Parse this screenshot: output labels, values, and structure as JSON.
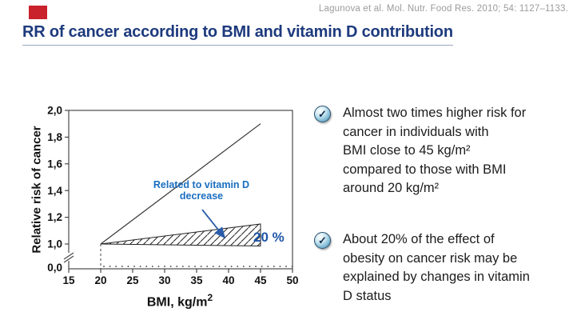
{
  "header": {
    "citation": "Lagunova et al. Mol. Nutr. Food Res. 2010; 54: 1127–1133.",
    "title": "RR of cancer according to BMI and vitamin D contribution"
  },
  "colors": {
    "title_navy": "#1d3a7d",
    "citation_gray": "#9b9b9b",
    "accent_red": "#c9222c",
    "annotation_blue": "#1a6ebf",
    "percent_blue": "#1d55a8",
    "arrow_blue": "#2a5caa",
    "icon_sphere_blue": "#7db8d4"
  },
  "chart_data": {
    "type": "line",
    "title": "",
    "xlabel": "BMI, kg/m",
    "xlabel_sup": "2",
    "ylabel": "Relative risk of cancer",
    "xlim": [
      15,
      50
    ],
    "ylim": [
      1.0,
      2.0
    ],
    "axis_break_between": [
      0.0,
      1.0
    ],
    "x_ticks": [
      "15",
      "20",
      "25",
      "30",
      "35",
      "40",
      "45",
      "50"
    ],
    "x_tick_values": [
      15,
      20,
      25,
      30,
      35,
      40,
      45,
      50
    ],
    "y_ticks": [
      "2,0",
      "1,8",
      "1,6",
      "1,4",
      "1,2",
      "1,0"
    ],
    "y_tick_values": [
      2.0,
      1.8,
      1.6,
      1.4,
      1.2,
      1.0
    ],
    "y_zero_label": "0,0",
    "grid": false,
    "series": [
      {
        "name": "total-bmi-effect-line",
        "style": "solid",
        "x": [
          20,
          45
        ],
        "y": [
          1.0,
          1.9
        ]
      },
      {
        "name": "vitamin-d-hatched-area",
        "style": "hatched",
        "points": [
          [
            20,
            1.0
          ],
          [
            45,
            1.15
          ],
          [
            45,
            0.985
          ]
        ]
      }
    ],
    "reference_lines": [
      {
        "name": "dashed-guide",
        "x": 20,
        "from_y": 1.0,
        "to_y": 0.0,
        "style": "dashed"
      },
      {
        "name": "dotted-baseline",
        "y": 0.0,
        "from_x": 20,
        "to_x": 50,
        "style": "dotted"
      }
    ],
    "annotations": [
      {
        "name": "vitamin-d-label",
        "text": "Related to vitamin D\ndecrease",
        "color": "#1a6ebf"
      },
      {
        "name": "percent-label",
        "text": "20 %",
        "color": "#1d55a8"
      }
    ]
  },
  "bullets": {
    "icon_glyph": "✓",
    "items": [
      {
        "text": "Almost two times higher risk for\ncancer in individuals with\nBMI close to 45 kg/m²\ncompared to those with BMI\naround 20 kg/m²"
      },
      {
        "text": "About 20% of the effect of\nobesity on cancer risk may be\nexplained by changes in vitamin\nD status"
      }
    ]
  }
}
